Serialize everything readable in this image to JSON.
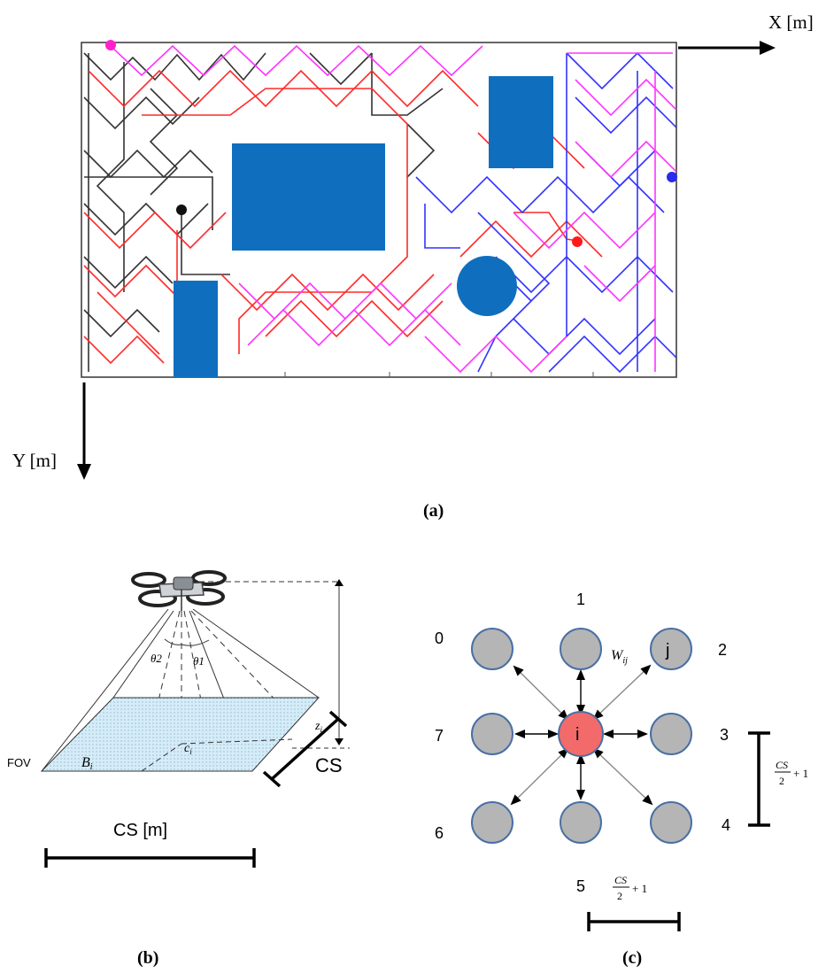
{
  "panel_a": {
    "x_axis_label": "X [m]",
    "y_axis_label": "Y [m]",
    "caption": "(a)",
    "colors": {
      "black_path": "#333333",
      "red_path": "#ff2a2a",
      "blue_path": "#3333ff",
      "magenta_path": "#ff33ff",
      "obstacle": "#0f6fbe"
    }
  },
  "panel_b": {
    "theta2": "θ2",
    "theta1": "θ1",
    "z_label": "z",
    "z_sub": "i",
    "c_label": "c",
    "c_sub": "i",
    "b_label": "B",
    "b_sub": "i",
    "fov_label": "FOV",
    "cs_side_label": "CS",
    "cs_bottom_label": "CS [m]",
    "caption": "(b)"
  },
  "panel_c": {
    "neighbor_indices": [
      "0",
      "1",
      "2",
      "3",
      "4",
      "5",
      "6",
      "7"
    ],
    "center_node_label": "i",
    "neighbor_node_label": "j",
    "weight_label": "W",
    "weight_sub": "ij",
    "fraction_num": "CS",
    "fraction_den": "2",
    "fraction_plus": "+ 1",
    "caption": "(c)",
    "colors": {
      "node_fill": "#b5b5b5",
      "node_stroke": "#4a6fa5",
      "center_fill": "#f26a6a"
    }
  }
}
